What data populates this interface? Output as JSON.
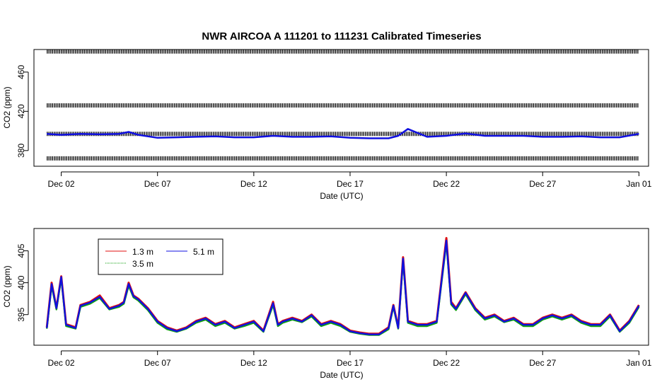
{
  "chart_data": [
    {
      "type": "scatter",
      "title": "NWR   AIRCOA  A   111201  to  111231   Calibrated Timeseries",
      "xlabel": "Date (UTC)",
      "ylabel": "CO2 (ppm)",
      "x_range": [
        "2011-11-30T14:00",
        "2012-01-01T12:00"
      ],
      "ylim": [
        364,
        483
      ],
      "x_ticks": [
        {
          "label": "Dec 02",
          "date": "2011-12-02"
        },
        {
          "label": "Dec 07",
          "date": "2011-12-07"
        },
        {
          "label": "Dec 12",
          "date": "2011-12-12"
        },
        {
          "label": "Dec 17",
          "date": "2011-12-17"
        },
        {
          "label": "Dec 22",
          "date": "2011-12-22"
        },
        {
          "label": "Dec 27",
          "date": "2011-12-27"
        },
        {
          "label": "Jan 01",
          "date": "2012-01-01"
        }
      ],
      "y_ticks": [
        {
          "label": "380",
          "value": 380
        },
        {
          "label": "420",
          "value": 420
        },
        {
          "label": "460",
          "value": 460
        }
      ],
      "reference_levels": [
        {
          "date_start": "2011-12-01T06:00",
          "date_end": "2012-01-01",
          "value": 481,
          "color": "#000000"
        },
        {
          "date_start": "2011-12-01T06:00",
          "date_end": "2012-01-01",
          "value": 426,
          "color": "#000000"
        },
        {
          "date_start": "2011-12-01T06:00",
          "date_end": "2012-01-01",
          "value": 397,
          "color": "#000000"
        },
        {
          "date_start": "2011-12-01T06:00",
          "date_end": "2012-01-01",
          "value": 372,
          "color": "#000000"
        }
      ],
      "series": [
        {
          "color": "#1010e0",
          "x": [
            "2011-12-01T06:00",
            "2011-12-02T00:00",
            "2011-12-03T00:00",
            "2011-12-04T00:00",
            "2011-12-05T00:00",
            "2011-12-05T12:00",
            "2011-12-06T00:00",
            "2011-12-07T00:00",
            "2011-12-08T00:00",
            "2011-12-09T00:00",
            "2011-12-10T00:00",
            "2011-12-11T00:00",
            "2011-12-12T00:00",
            "2011-12-13T00:00",
            "2011-12-14T00:00",
            "2011-12-15T00:00",
            "2011-12-16T00:00",
            "2011-12-17T00:00",
            "2011-12-18T00:00",
            "2011-12-19T00:00",
            "2011-12-19T12:00",
            "2011-12-20T00:00",
            "2011-12-21T00:00",
            "2011-12-22T00:00",
            "2011-12-23T00:00",
            "2011-12-24T00:00",
            "2011-12-25T00:00",
            "2011-12-26T00:00",
            "2011-12-27T00:00",
            "2011-12-28T00:00",
            "2011-12-29T00:00",
            "2011-12-30T00:00",
            "2011-12-31T00:00",
            "2012-01-01T00:00"
          ],
          "y": [
            397,
            396,
            397,
            396.5,
            397,
            399,
            396,
            393,
            393.5,
            394,
            394.5,
            393.5,
            393.5,
            395,
            394,
            394,
            394.5,
            393,
            392.5,
            392.5,
            395,
            402,
            394,
            395,
            397.5,
            395,
            395,
            395,
            394,
            394,
            394.5,
            393.5,
            393.5,
            397
          ]
        }
      ]
    },
    {
      "type": "line",
      "title": "",
      "xlabel": "Date (UTC)",
      "ylabel": "CO2 (ppm)",
      "x_range": [
        "2011-11-30T14:00",
        "2012-01-01T12:00"
      ],
      "ylim": [
        390.2,
        408.5
      ],
      "legend_position": "top-left",
      "x_ticks": [
        {
          "label": "Dec 02",
          "date": "2011-12-02"
        },
        {
          "label": "Dec 07",
          "date": "2011-12-07"
        },
        {
          "label": "Dec 12",
          "date": "2011-12-12"
        },
        {
          "label": "Dec 17",
          "date": "2011-12-17"
        },
        {
          "label": "Dec 22",
          "date": "2011-12-22"
        },
        {
          "label": "Dec 27",
          "date": "2011-12-27"
        },
        {
          "label": "Jan 01",
          "date": "2012-01-01"
        }
      ],
      "y_ticks": [
        {
          "label": "395",
          "value": 395
        },
        {
          "label": "400",
          "value": 400
        },
        {
          "label": "405",
          "value": 405
        }
      ],
      "x": [
        "2011-12-01T06:00",
        "2011-12-01T12:00",
        "2011-12-01T18:00",
        "2011-12-02T00:00",
        "2011-12-02T06:00",
        "2011-12-02T18:00",
        "2011-12-03T00:00",
        "2011-12-03T12:00",
        "2011-12-04T00:00",
        "2011-12-04T12:00",
        "2011-12-05T00:00",
        "2011-12-05T06:00",
        "2011-12-05T12:00",
        "2011-12-05T18:00",
        "2011-12-06T00:00",
        "2011-12-06T12:00",
        "2011-12-07T00:00",
        "2011-12-07T12:00",
        "2011-12-08T00:00",
        "2011-12-08T12:00",
        "2011-12-09T00:00",
        "2011-12-09T12:00",
        "2011-12-10T00:00",
        "2011-12-10T12:00",
        "2011-12-11T00:00",
        "2011-12-11T12:00",
        "2011-12-12T00:00",
        "2011-12-12T12:00",
        "2011-12-13T00:00",
        "2011-12-13T06:00",
        "2011-12-13T12:00",
        "2011-12-14T00:00",
        "2011-12-14T12:00",
        "2011-12-15T00:00",
        "2011-12-15T12:00",
        "2011-12-16T00:00",
        "2011-12-16T12:00",
        "2011-12-17T00:00",
        "2011-12-17T12:00",
        "2011-12-18T00:00",
        "2011-12-18T12:00",
        "2011-12-19T00:00",
        "2011-12-19T06:00",
        "2011-12-19T12:00",
        "2011-12-19T18:00",
        "2011-12-20T00:00",
        "2011-12-20T12:00",
        "2011-12-21T00:00",
        "2011-12-21T12:00",
        "2011-12-22T00:00",
        "2011-12-22T06:00",
        "2011-12-22T12:00",
        "2011-12-23T00:00",
        "2011-12-23T12:00",
        "2011-12-24T00:00",
        "2011-12-24T12:00",
        "2011-12-25T00:00",
        "2011-12-25T12:00",
        "2011-12-26T00:00",
        "2011-12-26T12:00",
        "2011-12-27T00:00",
        "2011-12-27T12:00",
        "2011-12-28T00:00",
        "2011-12-28T12:00",
        "2011-12-29T00:00",
        "2011-12-29T12:00",
        "2011-12-30T00:00",
        "2011-12-30T12:00",
        "2011-12-31T00:00",
        "2011-12-31T12:00",
        "2012-01-01T00:00"
      ],
      "series": [
        {
          "name": "1.3 m",
          "color": "#e01010",
          "values": [
            393,
            400,
            396,
            401,
            393.5,
            393,
            396.5,
            397,
            398,
            396,
            396.5,
            397,
            400,
            398,
            397.5,
            396,
            394,
            393,
            392.5,
            393,
            394,
            394.5,
            393.5,
            394,
            393,
            393.5,
            394,
            392.5,
            397,
            393.5,
            394,
            394.5,
            394,
            395,
            393.5,
            394,
            393.5,
            392.5,
            392.2,
            392,
            392,
            393,
            396.5,
            393,
            404,
            394,
            393.5,
            393.5,
            394,
            407,
            397,
            396,
            398.5,
            396,
            394.5,
            395,
            394,
            394.5,
            393.5,
            393.5,
            394.5,
            395,
            394.5,
            395,
            394,
            393.5,
            393.5,
            395,
            392.5,
            394,
            396.5
          ]
        },
        {
          "name": "3.5 m",
          "color": "#10a010",
          "values": [
            392.8,
            399.5,
            395.8,
            400.7,
            393.2,
            392.8,
            396.2,
            396.7,
            397.6,
            395.8,
            396.2,
            396.7,
            399.5,
            397.7,
            397.2,
            395.7,
            393.7,
            392.7,
            392.3,
            392.8,
            393.7,
            394.2,
            393.2,
            393.7,
            392.8,
            393.2,
            393.7,
            392.3,
            396.5,
            393.2,
            393.7,
            394.2,
            393.8,
            394.7,
            393.2,
            393.7,
            393.2,
            392.3,
            392,
            391.8,
            391.8,
            392.7,
            396.2,
            392.8,
            403.5,
            393.7,
            393.2,
            393.2,
            393.7,
            406.2,
            396.6,
            395.7,
            398.2,
            395.7,
            394.2,
            394.7,
            393.8,
            394.2,
            393.2,
            393.2,
            394.2,
            394.7,
            394.2,
            394.7,
            393.7,
            393.2,
            393.2,
            394.7,
            392.3,
            393.7,
            396.2
          ]
        },
        {
          "name": "5.1 m",
          "color": "#1010e0",
          "values": [
            392.9,
            399.8,
            396,
            400.9,
            393.4,
            392.9,
            396.4,
            396.9,
            397.8,
            395.9,
            396.4,
            396.9,
            399.8,
            397.9,
            397.4,
            395.9,
            393.9,
            392.9,
            392.4,
            392.9,
            393.9,
            394.4,
            393.4,
            393.9,
            392.9,
            393.4,
            393.9,
            392.4,
            396.8,
            393.4,
            393.9,
            394.4,
            393.9,
            394.9,
            393.4,
            393.9,
            393.4,
            392.4,
            392.1,
            391.9,
            391.9,
            392.9,
            396.4,
            392.9,
            403.8,
            393.9,
            393.4,
            393.4,
            393.9,
            406.6,
            396.8,
            395.9,
            398.4,
            395.9,
            394.4,
            394.9,
            393.9,
            394.4,
            393.4,
            393.4,
            394.4,
            394.9,
            394.4,
            394.9,
            393.9,
            393.4,
            393.4,
            394.9,
            392.4,
            393.9,
            396.4
          ]
        }
      ]
    }
  ]
}
